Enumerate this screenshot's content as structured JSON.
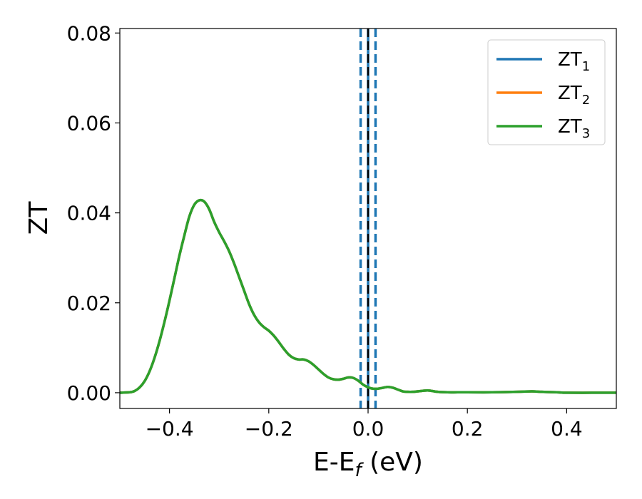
{
  "chart_data": {
    "type": "line",
    "xlabel": "E-E",
    "xlabel_subscript": "f",
    "xlabel_unit": " (eV)",
    "ylabel": "ZT",
    "xlim": [
      -0.5,
      0.5
    ],
    "ylim": [
      -0.0035,
      0.081
    ],
    "xticks": [
      -0.4,
      -0.2,
      0.0,
      0.2,
      0.4
    ],
    "xtick_labels": [
      "−0.4",
      "−0.2",
      "0.0",
      "0.2",
      "0.4"
    ],
    "yticks": [
      0.0,
      0.02,
      0.04,
      0.06,
      0.08
    ],
    "ytick_labels": [
      "0.00",
      "0.02",
      "0.04",
      "0.06",
      "0.08"
    ],
    "grid": false,
    "legend_position": "top-right",
    "series": [
      {
        "name": "ZT",
        "subscript": "1",
        "color": "#1f77b4",
        "x": [
          -0.5,
          -0.48,
          -0.47,
          -0.46,
          -0.45,
          -0.44,
          -0.43,
          -0.42,
          -0.41,
          -0.4,
          -0.39,
          -0.38,
          -0.37,
          -0.36,
          -0.35,
          -0.34,
          -0.33,
          -0.32,
          -0.31,
          -0.3,
          -0.29,
          -0.28,
          -0.27,
          -0.26,
          -0.25,
          -0.24,
          -0.23,
          -0.22,
          -0.21,
          -0.2,
          -0.19,
          -0.18,
          -0.17,
          -0.16,
          -0.15,
          -0.14,
          -0.13,
          -0.12,
          -0.11,
          -0.1,
          -0.09,
          -0.08,
          -0.07,
          -0.06,
          -0.05,
          -0.04,
          -0.03,
          -0.02,
          -0.01,
          0.0,
          0.01,
          0.02,
          0.03,
          0.04,
          0.05,
          0.06,
          0.07,
          0.08,
          0.09,
          0.1,
          0.12,
          0.14,
          0.16,
          0.18,
          0.2,
          0.25,
          0.3,
          0.33,
          0.35,
          0.38,
          0.4,
          0.45,
          0.5
        ],
        "y": [
          0.0,
          0.0001,
          0.0004,
          0.0012,
          0.0026,
          0.0048,
          0.0078,
          0.0115,
          0.0158,
          0.0205,
          0.0255,
          0.0305,
          0.035,
          0.0392,
          0.0418,
          0.0428,
          0.0425,
          0.0408,
          0.038,
          0.0357,
          0.0337,
          0.0315,
          0.0288,
          0.0258,
          0.0228,
          0.0198,
          0.0174,
          0.0157,
          0.0146,
          0.0138,
          0.0127,
          0.0113,
          0.0098,
          0.0085,
          0.0077,
          0.0074,
          0.0074,
          0.007,
          0.0062,
          0.0052,
          0.0042,
          0.0034,
          0.003,
          0.0029,
          0.0031,
          0.0034,
          0.0033,
          0.0027,
          0.0018,
          0.0012,
          0.0009,
          0.0009,
          0.0011,
          0.0013,
          0.0011,
          0.0007,
          0.0003,
          0.0002,
          0.0002,
          0.0003,
          0.0005,
          0.0002,
          0.0001,
          0.0001,
          0.0001,
          0.0001,
          0.0002,
          0.0003,
          0.0002,
          0.0001,
          0.0,
          0.0,
          0.0
        ]
      },
      {
        "name": "ZT",
        "subscript": "2",
        "color": "#ff7f0e",
        "x": [
          -0.5,
          -0.48,
          -0.47,
          -0.46,
          -0.45,
          -0.44,
          -0.43,
          -0.42,
          -0.41,
          -0.4,
          -0.39,
          -0.38,
          -0.37,
          -0.36,
          -0.35,
          -0.34,
          -0.33,
          -0.32,
          -0.31,
          -0.3,
          -0.29,
          -0.28,
          -0.27,
          -0.26,
          -0.25,
          -0.24,
          -0.23,
          -0.22,
          -0.21,
          -0.2,
          -0.19,
          -0.18,
          -0.17,
          -0.16,
          -0.15,
          -0.14,
          -0.13,
          -0.12,
          -0.11,
          -0.1,
          -0.09,
          -0.08,
          -0.07,
          -0.06,
          -0.05,
          -0.04,
          -0.03,
          -0.02,
          -0.01,
          0.0,
          0.01,
          0.02,
          0.03,
          0.04,
          0.05,
          0.06,
          0.07,
          0.08,
          0.09,
          0.1,
          0.12,
          0.14,
          0.16,
          0.18,
          0.2,
          0.25,
          0.3,
          0.33,
          0.35,
          0.38,
          0.4,
          0.45,
          0.5
        ],
        "y": [
          0.0,
          0.0001,
          0.0004,
          0.0012,
          0.0026,
          0.0048,
          0.0078,
          0.0115,
          0.0158,
          0.0205,
          0.0255,
          0.0305,
          0.035,
          0.0392,
          0.0418,
          0.0428,
          0.0425,
          0.0408,
          0.038,
          0.0357,
          0.0337,
          0.0315,
          0.0288,
          0.0258,
          0.0228,
          0.0198,
          0.0174,
          0.0157,
          0.0146,
          0.0138,
          0.0127,
          0.0113,
          0.0098,
          0.0085,
          0.0077,
          0.0074,
          0.0074,
          0.007,
          0.0062,
          0.0052,
          0.0042,
          0.0034,
          0.003,
          0.0029,
          0.0031,
          0.0034,
          0.0033,
          0.0027,
          0.0018,
          0.0012,
          0.0009,
          0.0009,
          0.0011,
          0.0013,
          0.0011,
          0.0007,
          0.0003,
          0.0002,
          0.0002,
          0.0003,
          0.0005,
          0.0002,
          0.0001,
          0.0001,
          0.0001,
          0.0001,
          0.0002,
          0.0003,
          0.0002,
          0.0001,
          0.0,
          0.0,
          0.0
        ]
      },
      {
        "name": "ZT",
        "subscript": "3",
        "color": "#2ca02c",
        "x": [
          -0.5,
          -0.48,
          -0.47,
          -0.46,
          -0.45,
          -0.44,
          -0.43,
          -0.42,
          -0.41,
          -0.4,
          -0.39,
          -0.38,
          -0.37,
          -0.36,
          -0.35,
          -0.34,
          -0.33,
          -0.32,
          -0.31,
          -0.3,
          -0.29,
          -0.28,
          -0.27,
          -0.26,
          -0.25,
          -0.24,
          -0.23,
          -0.22,
          -0.21,
          -0.2,
          -0.19,
          -0.18,
          -0.17,
          -0.16,
          -0.15,
          -0.14,
          -0.13,
          -0.12,
          -0.11,
          -0.1,
          -0.09,
          -0.08,
          -0.07,
          -0.06,
          -0.05,
          -0.04,
          -0.03,
          -0.02,
          -0.01,
          0.0,
          0.01,
          0.02,
          0.03,
          0.04,
          0.05,
          0.06,
          0.07,
          0.08,
          0.09,
          0.1,
          0.12,
          0.14,
          0.16,
          0.18,
          0.2,
          0.25,
          0.3,
          0.33,
          0.35,
          0.38,
          0.4,
          0.45,
          0.5
        ],
        "y": [
          0.0,
          0.0001,
          0.0004,
          0.0012,
          0.0026,
          0.0048,
          0.0078,
          0.0115,
          0.0158,
          0.0205,
          0.0255,
          0.0305,
          0.035,
          0.0392,
          0.0418,
          0.0428,
          0.0425,
          0.0408,
          0.038,
          0.0357,
          0.0337,
          0.0315,
          0.0288,
          0.0258,
          0.0228,
          0.0198,
          0.0174,
          0.0157,
          0.0146,
          0.0138,
          0.0127,
          0.0113,
          0.0098,
          0.0085,
          0.0077,
          0.0074,
          0.0074,
          0.007,
          0.0062,
          0.0052,
          0.0042,
          0.0034,
          0.003,
          0.0029,
          0.0031,
          0.0034,
          0.0033,
          0.0027,
          0.0018,
          0.0012,
          0.0009,
          0.0009,
          0.0011,
          0.0013,
          0.0011,
          0.0007,
          0.0003,
          0.0002,
          0.0002,
          0.0003,
          0.0005,
          0.0002,
          0.0001,
          0.0001,
          0.0001,
          0.0001,
          0.0002,
          0.0003,
          0.0002,
          0.0001,
          0.0,
          0.0,
          0.0
        ]
      }
    ],
    "vlines": [
      {
        "x": -0.015,
        "style": "dashed",
        "color": "#1f77b4"
      },
      {
        "x": 0.0,
        "style": "solid",
        "color": "#1f77b4"
      },
      {
        "x": 0.015,
        "style": "dashed",
        "color": "#1f77b4"
      },
      {
        "x": 0.0,
        "style": "dashed",
        "color": "#000000"
      }
    ]
  }
}
